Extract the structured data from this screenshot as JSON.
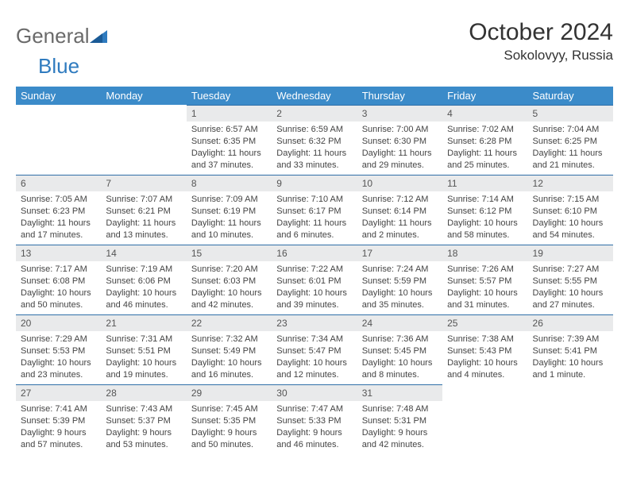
{
  "brand": {
    "general": "General",
    "blue": "Blue"
  },
  "title": "October 2024",
  "location": "Sokolovyy, Russia",
  "header_color": "#3b8bc9",
  "daynum_bg": "#e9eaeb",
  "row_border": "#2f6fa8",
  "weekdays": [
    "Sunday",
    "Monday",
    "Tuesday",
    "Wednesday",
    "Thursday",
    "Friday",
    "Saturday"
  ],
  "weeks": [
    [
      null,
      null,
      {
        "n": "1",
        "sr": "6:57 AM",
        "ss": "6:35 PM",
        "dl": "11 hours and 37 minutes."
      },
      {
        "n": "2",
        "sr": "6:59 AM",
        "ss": "6:32 PM",
        "dl": "11 hours and 33 minutes."
      },
      {
        "n": "3",
        "sr": "7:00 AM",
        "ss": "6:30 PM",
        "dl": "11 hours and 29 minutes."
      },
      {
        "n": "4",
        "sr": "7:02 AM",
        "ss": "6:28 PM",
        "dl": "11 hours and 25 minutes."
      },
      {
        "n": "5",
        "sr": "7:04 AM",
        "ss": "6:25 PM",
        "dl": "11 hours and 21 minutes."
      }
    ],
    [
      {
        "n": "6",
        "sr": "7:05 AM",
        "ss": "6:23 PM",
        "dl": "11 hours and 17 minutes."
      },
      {
        "n": "7",
        "sr": "7:07 AM",
        "ss": "6:21 PM",
        "dl": "11 hours and 13 minutes."
      },
      {
        "n": "8",
        "sr": "7:09 AM",
        "ss": "6:19 PM",
        "dl": "11 hours and 10 minutes."
      },
      {
        "n": "9",
        "sr": "7:10 AM",
        "ss": "6:17 PM",
        "dl": "11 hours and 6 minutes."
      },
      {
        "n": "10",
        "sr": "7:12 AM",
        "ss": "6:14 PM",
        "dl": "11 hours and 2 minutes."
      },
      {
        "n": "11",
        "sr": "7:14 AM",
        "ss": "6:12 PM",
        "dl": "10 hours and 58 minutes."
      },
      {
        "n": "12",
        "sr": "7:15 AM",
        "ss": "6:10 PM",
        "dl": "10 hours and 54 minutes."
      }
    ],
    [
      {
        "n": "13",
        "sr": "7:17 AM",
        "ss": "6:08 PM",
        "dl": "10 hours and 50 minutes."
      },
      {
        "n": "14",
        "sr": "7:19 AM",
        "ss": "6:06 PM",
        "dl": "10 hours and 46 minutes."
      },
      {
        "n": "15",
        "sr": "7:20 AM",
        "ss": "6:03 PM",
        "dl": "10 hours and 42 minutes."
      },
      {
        "n": "16",
        "sr": "7:22 AM",
        "ss": "6:01 PM",
        "dl": "10 hours and 39 minutes."
      },
      {
        "n": "17",
        "sr": "7:24 AM",
        "ss": "5:59 PM",
        "dl": "10 hours and 35 minutes."
      },
      {
        "n": "18",
        "sr": "7:26 AM",
        "ss": "5:57 PM",
        "dl": "10 hours and 31 minutes."
      },
      {
        "n": "19",
        "sr": "7:27 AM",
        "ss": "5:55 PM",
        "dl": "10 hours and 27 minutes."
      }
    ],
    [
      {
        "n": "20",
        "sr": "7:29 AM",
        "ss": "5:53 PM",
        "dl": "10 hours and 23 minutes."
      },
      {
        "n": "21",
        "sr": "7:31 AM",
        "ss": "5:51 PM",
        "dl": "10 hours and 19 minutes."
      },
      {
        "n": "22",
        "sr": "7:32 AM",
        "ss": "5:49 PM",
        "dl": "10 hours and 16 minutes."
      },
      {
        "n": "23",
        "sr": "7:34 AM",
        "ss": "5:47 PM",
        "dl": "10 hours and 12 minutes."
      },
      {
        "n": "24",
        "sr": "7:36 AM",
        "ss": "5:45 PM",
        "dl": "10 hours and 8 minutes."
      },
      {
        "n": "25",
        "sr": "7:38 AM",
        "ss": "5:43 PM",
        "dl": "10 hours and 4 minutes."
      },
      {
        "n": "26",
        "sr": "7:39 AM",
        "ss": "5:41 PM",
        "dl": "10 hours and 1 minute."
      }
    ],
    [
      {
        "n": "27",
        "sr": "7:41 AM",
        "ss": "5:39 PM",
        "dl": "9 hours and 57 minutes."
      },
      {
        "n": "28",
        "sr": "7:43 AM",
        "ss": "5:37 PM",
        "dl": "9 hours and 53 minutes."
      },
      {
        "n": "29",
        "sr": "7:45 AM",
        "ss": "5:35 PM",
        "dl": "9 hours and 50 minutes."
      },
      {
        "n": "30",
        "sr": "7:47 AM",
        "ss": "5:33 PM",
        "dl": "9 hours and 46 minutes."
      },
      {
        "n": "31",
        "sr": "7:48 AM",
        "ss": "5:31 PM",
        "dl": "9 hours and 42 minutes."
      },
      null,
      null
    ]
  ],
  "labels": {
    "sunrise": "Sunrise: ",
    "sunset": "Sunset: ",
    "daylight": "Daylight: "
  }
}
